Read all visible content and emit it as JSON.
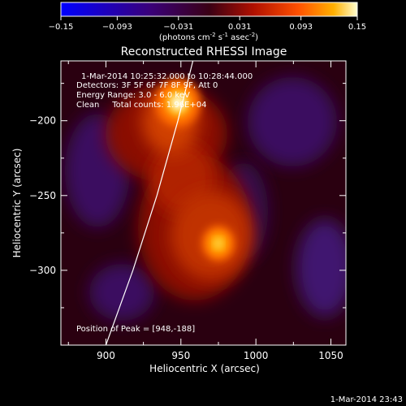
{
  "chart_data": {
    "type": "heatmap",
    "title": "Reconstructed RHESSI Image",
    "xlabel": "Heliocentric X (arcsec)",
    "ylabel": "Heliocentric Y (arcsec)",
    "xlim": [
      870,
      1060
    ],
    "ylim": [
      -350,
      -160
    ],
    "x_ticks": [
      900,
      950,
      1000,
      1050
    ],
    "y_ticks": [
      -200,
      -250,
      -300
    ],
    "colorbar": {
      "range": [
        -0.15,
        0.15
      ],
      "ticks": [
        "-0.15",
        "-0.093",
        "-0.031",
        "0.031",
        "0.093",
        "0.15"
      ],
      "label_prefix": "(photons cm",
      "label_sup1": "-2",
      "label_mid": " s",
      "label_sup2": "-1",
      "label_mid2": " asec",
      "label_sup3": "-2",
      "label_suffix": ")"
    },
    "annotations": {
      "time_range": "1-Mar-2014 10:25:32.000 to 10:28:44.000",
      "detectors": "Detectors: 3F 5F 6F 7F 8F 9F, Att 0",
      "energy": "Energy Range: 3.0 - 6.0 keV",
      "clean": "Clean     Total counts: 1.96E+04",
      "peak": "Position of Peak = [948,-188]"
    },
    "sources": [
      {
        "x": 948,
        "y": -188,
        "value": 0.15
      },
      {
        "x": 975,
        "y": -282,
        "value": 0.11
      }
    ],
    "limb_points": [
      [
        900,
        -350
      ],
      [
        918,
        -300
      ],
      [
        934,
        -250
      ],
      [
        948,
        -200
      ],
      [
        958,
        -160
      ]
    ],
    "timestamp": "1-Mar-2014 23:43"
  }
}
